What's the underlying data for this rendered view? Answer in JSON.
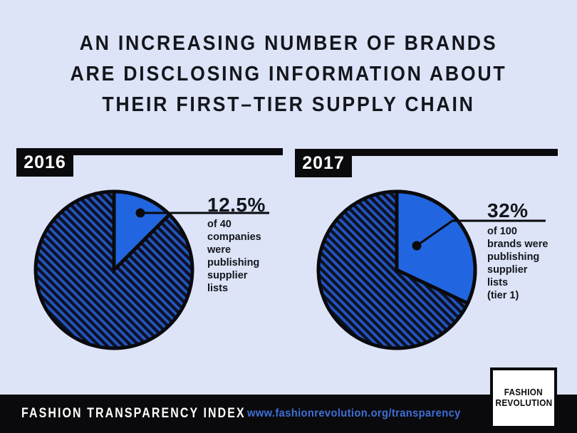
{
  "title": {
    "line1": "AN INCREASING NUMBER OF BRANDS",
    "line2": "ARE DISCLOSING INFORMATION ABOUT",
    "line3": "THEIR FIRST–TIER SUPPLY CHAIN"
  },
  "charts": [
    {
      "year": "2016",
      "percent_label": "12.5%",
      "description_lines": [
        "of 40",
        "companies",
        "were",
        "publishing",
        "supplier",
        "lists"
      ]
    },
    {
      "year": "2017",
      "percent_label": "32%",
      "description_lines": [
        "of 100",
        "brands were",
        "publishing",
        "supplier",
        "lists",
        "(tier 1)"
      ]
    }
  ],
  "footer": {
    "index_label": "FASHION TRANSPARENCY INDEX",
    "url": "www.fashionrevolution.org/transparency"
  },
  "logo": {
    "line1": "FASHION",
    "line2": "REVOLUTION"
  },
  "colors": {
    "background": "#dde4f8",
    "ink": "#14161c",
    "black": "#0a0a0d",
    "slice_blue": "#2166e0",
    "hatch_blue": "#2456c2",
    "hatch_dark": "#0c1226",
    "url_blue": "#3f6fd6",
    "logo_bg": "#ffffff"
  },
  "chart_data": [
    {
      "type": "pie",
      "title": "2016",
      "slices": [
        {
          "label": "publishing supplier lists",
          "value": 12.5,
          "color": "#2166e0"
        },
        {
          "label": "not publishing supplier lists",
          "value": 87.5,
          "color": "hatched-navy"
        }
      ],
      "unit": "percent",
      "annotation": "12.5% of 40 companies were publishing supplier lists"
    },
    {
      "type": "pie",
      "title": "2017",
      "slices": [
        {
          "label": "publishing supplier lists (tier 1)",
          "value": 32,
          "color": "#2166e0"
        },
        {
          "label": "not publishing supplier lists",
          "value": 68,
          "color": "hatched-navy"
        }
      ],
      "unit": "percent",
      "annotation": "32% of 100 brands were publishing supplier lists (tier 1)"
    }
  ]
}
